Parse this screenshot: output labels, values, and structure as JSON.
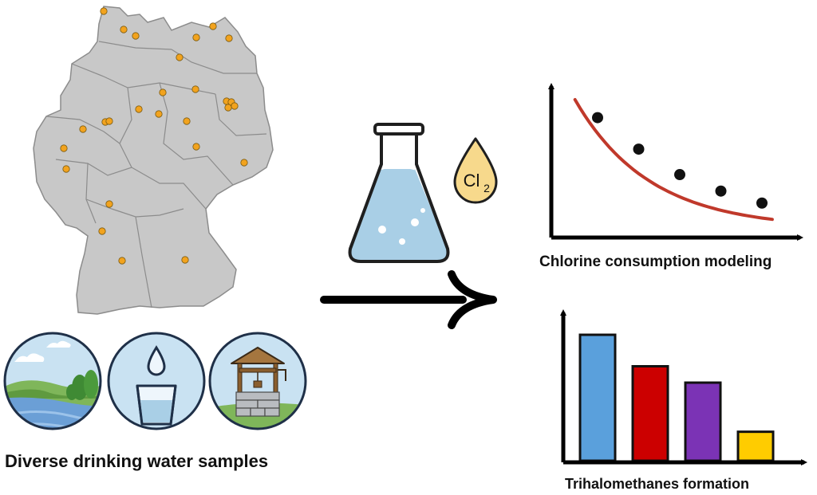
{
  "captions": {
    "samples": "Diverse drinking water samples",
    "chlorine": "Chlorine consumption modeling",
    "thm": "Trihalomethanes formation"
  },
  "reagent": {
    "symbol": "Cl",
    "subscript": "2"
  },
  "colors": {
    "map_fill": "#c8c8c8",
    "map_border": "#8c8c8c",
    "site_dot": "#f2a31e",
    "curve": "#c0392b",
    "water": "#a9cfe6",
    "droplet": "#f7d98c",
    "circle_bg": "#c9e2f2"
  },
  "icons": [
    "germany-map-icon",
    "river-landscape-icon",
    "water-glass-icon",
    "well-icon",
    "flask-icon",
    "chlorine-drop-icon",
    "arrow-right-icon"
  ],
  "chlorine_chart": {
    "type": "scatter",
    "points": [
      [
        1,
        0.8
      ],
      [
        2,
        0.59
      ],
      [
        3,
        0.42
      ],
      [
        4,
        0.31
      ],
      [
        5,
        0.23
      ]
    ],
    "fit": "decay curve"
  },
  "thm_chart": {
    "type": "bar",
    "values": [
      1.0,
      0.75,
      0.62,
      0.23
    ],
    "colors": [
      "#5aa0dc",
      "#cc0000",
      "#7b33b5",
      "#ffcc00"
    ]
  }
}
